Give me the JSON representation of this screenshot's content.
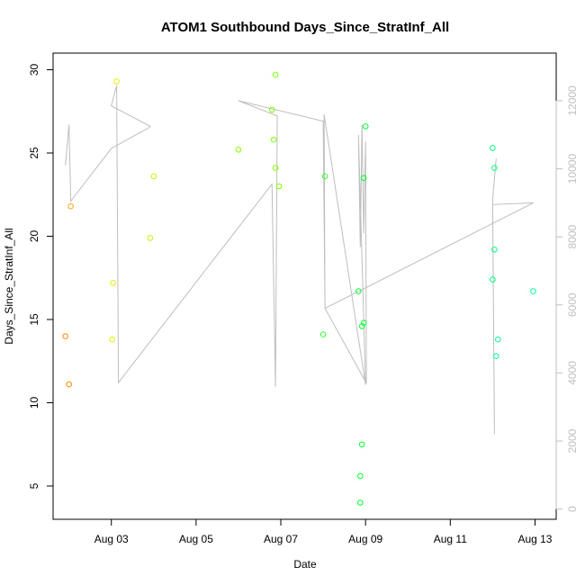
{
  "chart_data": {
    "type": "scatter",
    "title": "ATOM1 Southbound Days_Since_StratInf_All",
    "xlabel": "Date",
    "ylabel": "Days_Since_StratInf_All",
    "x_ticks": [
      "Aug 03",
      "Aug 05",
      "Aug 07",
      "Aug 09",
      "Aug 11",
      "Aug 13"
    ],
    "y_ticks": [
      "5",
      "10",
      "15",
      "20",
      "25",
      "30"
    ],
    "y2_ticks": [
      "0",
      "2000",
      "4000",
      "6000",
      "8000",
      "10000",
      "12000"
    ],
    "xlim": [
      "2023-08-01T15:00",
      "2023-08-13T12:00"
    ],
    "ylim": [
      3,
      31
    ],
    "y2lim": [
      -300,
      13400
    ],
    "line_color": "#bebebe",
    "points": [
      {
        "x": "2023-08-01T22:00",
        "y": 14.0,
        "color": "#FF8C00"
      },
      {
        "x": "2023-08-02T00:00",
        "y": 11.1,
        "color": "#FF8C00"
      },
      {
        "x": "2023-08-02T01:00",
        "y": 21.8,
        "color": "#FFA500"
      },
      {
        "x": "2023-08-03T00:30",
        "y": 13.8,
        "color": "#E0F000"
      },
      {
        "x": "2023-08-03T01:00",
        "y": 17.2,
        "color": "#E0F000"
      },
      {
        "x": "2023-08-03T03:00",
        "y": 29.3,
        "color": "#E0F000"
      },
      {
        "x": "2023-08-03T22:00",
        "y": 19.9,
        "color": "#C8F000"
      },
      {
        "x": "2023-08-04T00:00",
        "y": 23.6,
        "color": "#C8F000"
      },
      {
        "x": "2023-08-06T00:00",
        "y": 25.2,
        "color": "#7FFF00"
      },
      {
        "x": "2023-08-06T19:00",
        "y": 27.6,
        "color": "#7FFF00"
      },
      {
        "x": "2023-08-06T20:00",
        "y": 25.8,
        "color": "#7FFF00"
      },
      {
        "x": "2023-08-06T21:00",
        "y": 24.1,
        "color": "#7FFF00"
      },
      {
        "x": "2023-08-06T21:00",
        "y": 29.7,
        "color": "#7FFF00"
      },
      {
        "x": "2023-08-06T23:00",
        "y": 23.0,
        "color": "#7FFF00"
      },
      {
        "x": "2023-08-08T00:00",
        "y": 14.1,
        "color": "#33FF33"
      },
      {
        "x": "2023-08-08T01:00",
        "y": 23.6,
        "color": "#33FF33"
      },
      {
        "x": "2023-08-08T20:00",
        "y": 16.7,
        "color": "#00FF33"
      },
      {
        "x": "2023-08-08T21:00",
        "y": 4.0,
        "color": "#00FF33"
      },
      {
        "x": "2023-08-08T21:00",
        "y": 5.6,
        "color": "#00FF33"
      },
      {
        "x": "2023-08-08T22:00",
        "y": 7.5,
        "color": "#00FF33"
      },
      {
        "x": "2023-08-08T22:00",
        "y": 14.6,
        "color": "#00FF33"
      },
      {
        "x": "2023-08-08T23:00",
        "y": 14.8,
        "color": "#00FF33"
      },
      {
        "x": "2023-08-08T23:00",
        "y": 23.5,
        "color": "#00FF33"
      },
      {
        "x": "2023-08-09T00:00",
        "y": 26.6,
        "color": "#00FF33"
      },
      {
        "x": "2023-08-12T00:00",
        "y": 17.4,
        "color": "#00FF80"
      },
      {
        "x": "2023-08-12T00:00",
        "y": 25.3,
        "color": "#00FF80"
      },
      {
        "x": "2023-08-12T01:00",
        "y": 19.2,
        "color": "#00FF80"
      },
      {
        "x": "2023-08-12T01:00",
        "y": 24.1,
        "color": "#00FF80"
      },
      {
        "x": "2023-08-12T02:00",
        "y": 12.8,
        "color": "#00FF99"
      },
      {
        "x": "2023-08-12T03:00",
        "y": 13.8,
        "color": "#00FF99"
      },
      {
        "x": "2023-08-12T23:00",
        "y": 16.7,
        "color": "#00FF99"
      }
    ],
    "line_series": [
      {
        "x": "2023-08-01T22:00",
        "y2": 10100
      },
      {
        "x": "2023-08-02T00:00",
        "y2": 11300
      },
      {
        "x": "2023-08-02T01:00",
        "y2": 9050
      },
      {
        "x": "2023-08-03T00:00",
        "y2": 10600
      },
      {
        "x": "2023-08-03T21:00",
        "y2": 11200
      },
      {
        "x": "2023-08-03T22:00",
        "y2": 11250
      },
      {
        "x": "2023-08-03T00:00",
        "y2": 11850
      },
      {
        "x": "2023-08-03T03:00",
        "y2": 12450
      },
      {
        "x": "2023-08-03T04:00",
        "y2": 3720
      },
      {
        "x": "2023-08-06T19:00",
        "y2": 9550
      },
      {
        "x": "2023-08-06T21:00",
        "y2": 3600
      },
      {
        "x": "2023-08-06T22:00",
        "y2": 11550
      },
      {
        "x": "2023-08-06T00:00",
        "y2": 12000
      },
      {
        "x": "2023-08-08T00:00",
        "y2": 11400
      },
      {
        "x": "2023-08-08T01:00",
        "y2": 5900
      },
      {
        "x": "2023-08-08T00:30",
        "y2": 11600
      },
      {
        "x": "2023-08-09T00:00",
        "y2": 3650
      },
      {
        "x": "2023-08-08T20:00",
        "y2": 11000
      },
      {
        "x": "2023-08-08T21:00",
        "y2": 7700
      },
      {
        "x": "2023-08-08T22:00",
        "y2": 11300
      },
      {
        "x": "2023-08-08T23:00",
        "y2": 8100
      },
      {
        "x": "2023-08-09T00:00",
        "y2": 10800
      },
      {
        "x": "2023-08-09T00:30",
        "y2": 3700
      },
      {
        "x": "2023-08-08T01:00",
        "y2": 5900
      },
      {
        "x": "2023-08-12T23:00",
        "y2": 9000
      },
      {
        "x": "2023-08-12T00:00",
        "y2": 8950
      },
      {
        "x": "2023-08-12T01:00",
        "y2": 2200
      },
      {
        "x": "2023-08-12T00:00",
        "y2": 9100
      },
      {
        "x": "2023-08-12T02:00",
        "y2": 10300
      }
    ]
  }
}
